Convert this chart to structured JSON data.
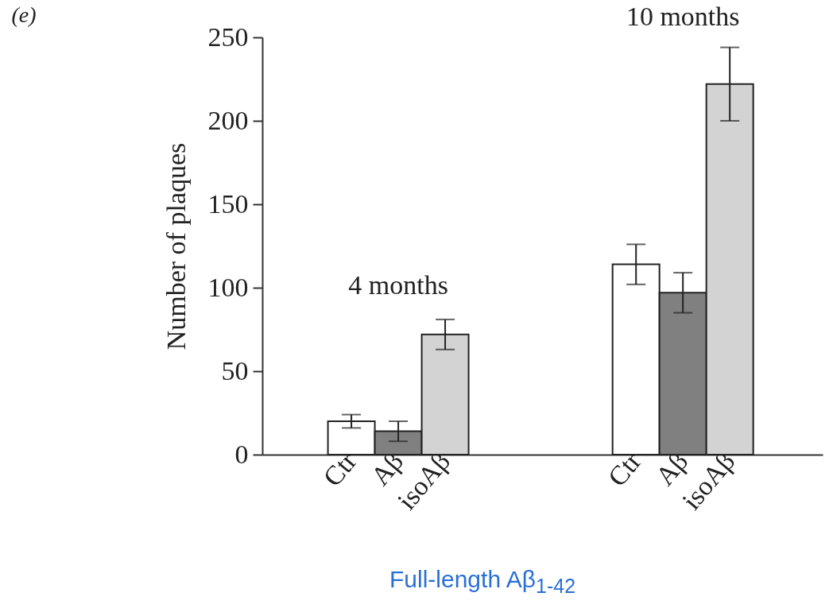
{
  "chart_data": {
    "type": "bar",
    "categories": [
      "Ctr",
      "Aβ",
      "isoAβ",
      "Ctr",
      "Aβ",
      "isoAβ"
    ],
    "values": [
      20,
      14,
      72,
      114,
      97,
      222
    ],
    "errors": [
      4,
      6,
      9,
      12,
      12,
      22
    ],
    "colors": [
      "#ffffff",
      "#808080",
      "#d3d3d3",
      "#ffffff",
      "#808080",
      "#d3d3d3"
    ],
    "ylabel": "Number of plaques",
    "xlabel": "Full-length Aβ$_{1-42}$",
    "ylim": [
      0,
      250
    ],
    "yticks": [
      0,
      50,
      100,
      150,
      200,
      250
    ],
    "annotations": [
      "(e)",
      "4 months",
      "10 months"
    ]
  }
}
